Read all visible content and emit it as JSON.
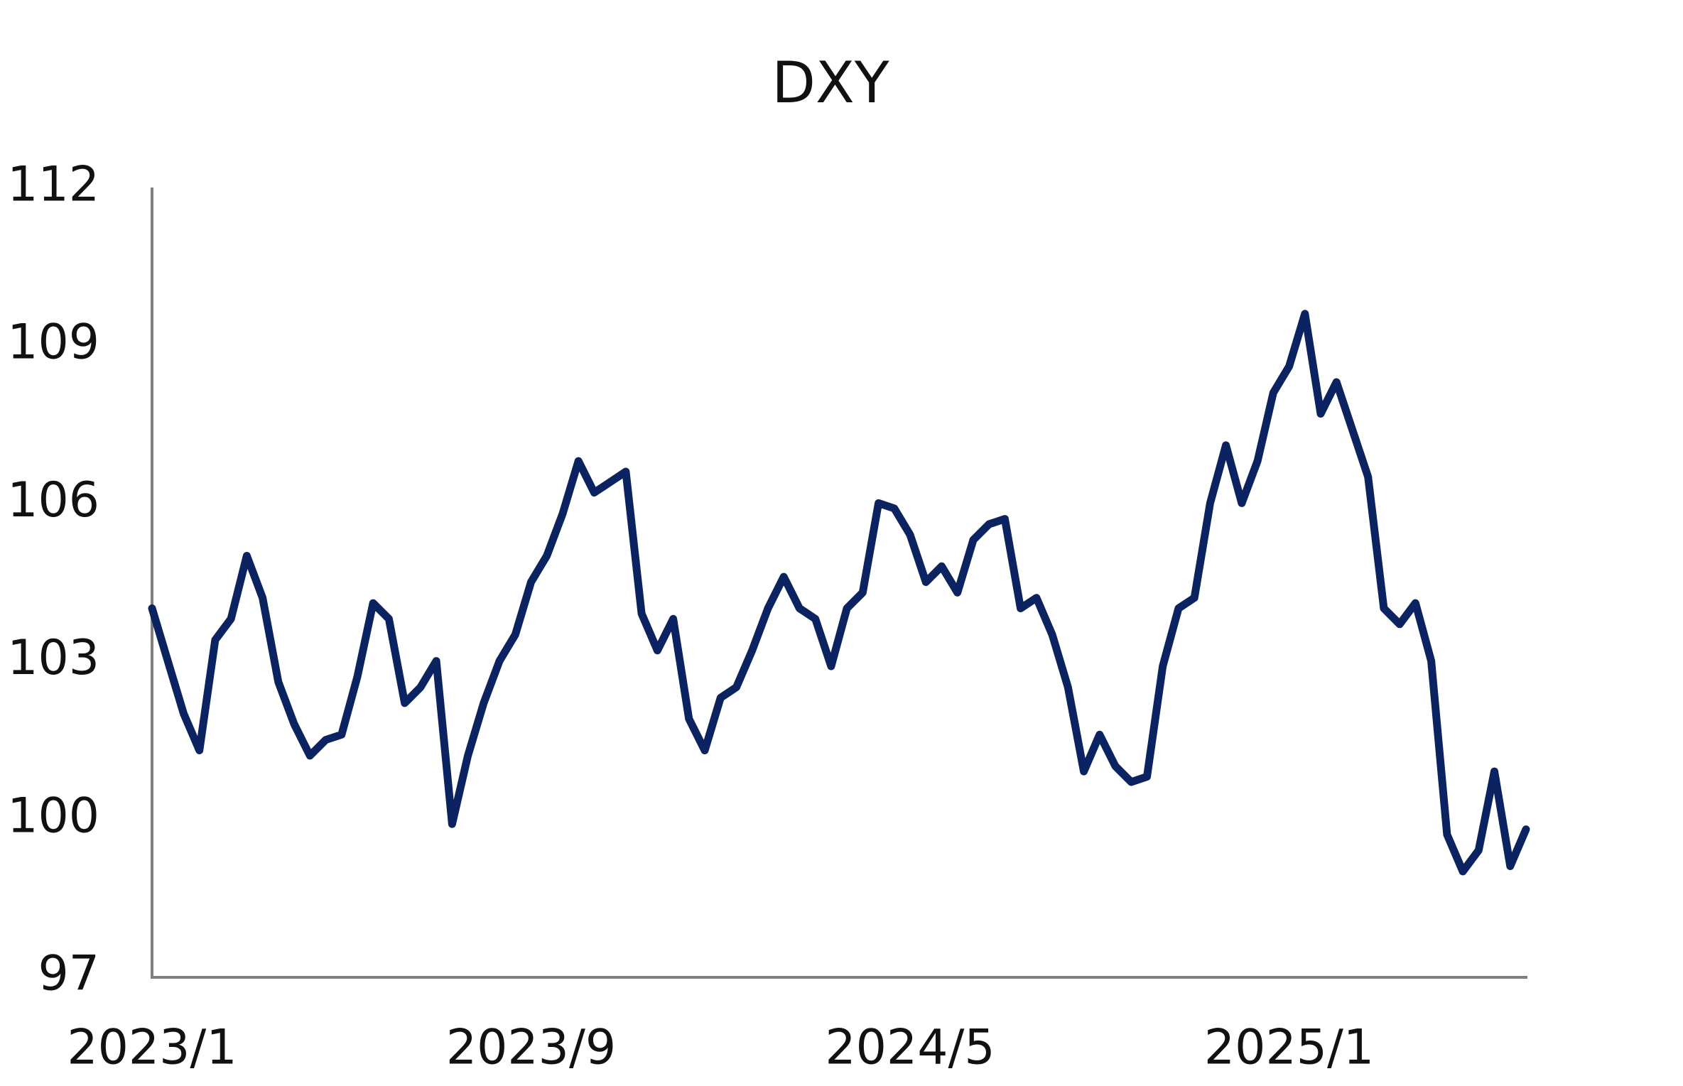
{
  "chart_data": {
    "type": "line",
    "title": "DXY",
    "categories": [
      "2023/1",
      null,
      null,
      null,
      null,
      null,
      null,
      null,
      null,
      null,
      null,
      null,
      null,
      null,
      null,
      null,
      null,
      null,
      null,
      null,
      null,
      null,
      null,
      null,
      "2023/9",
      null,
      null,
      null,
      null,
      null,
      null,
      null,
      null,
      null,
      null,
      null,
      null,
      null,
      null,
      null,
      null,
      null,
      null,
      null,
      null,
      null,
      null,
      null,
      "2024/5",
      null,
      null,
      null,
      null,
      null,
      null,
      null,
      null,
      null,
      null,
      null,
      null,
      null,
      null,
      null,
      null,
      null,
      null,
      null,
      null,
      null,
      null,
      null,
      "2025/1",
      null,
      null,
      null,
      null,
      null,
      null,
      null,
      null,
      null,
      null,
      null,
      null,
      null,
      null,
      null
    ],
    "values": [
      104.0,
      103.0,
      102.0,
      101.3,
      103.4,
      103.8,
      105.0,
      104.2,
      102.6,
      101.8,
      101.2,
      101.5,
      101.6,
      102.7,
      104.1,
      103.8,
      102.2,
      102.5,
      103.0,
      99.9,
      101.2,
      102.2,
      103.0,
      103.5,
      104.5,
      105.0,
      105.8,
      106.8,
      106.2,
      106.4,
      106.6,
      103.9,
      103.2,
      103.8,
      101.9,
      101.3,
      102.3,
      102.5,
      103.2,
      104.0,
      104.6,
      104.0,
      103.8,
      102.9,
      104.0,
      104.3,
      106.0,
      105.9,
      105.4,
      104.5,
      104.8,
      104.3,
      105.3,
      105.6,
      105.7,
      104.0,
      104.2,
      103.5,
      102.5,
      100.9,
      101.6,
      101.0,
      100.7,
      100.8,
      102.9,
      104.0,
      104.2,
      106.0,
      107.1,
      106.0,
      106.8,
      108.1,
      108.6,
      109.6,
      107.7,
      108.3,
      107.4,
      106.5,
      104.0,
      103.7,
      104.1,
      103.0,
      99.7,
      99.0,
      99.4,
      100.9,
      99.1,
      99.8
    ],
    "color": "#0b2361",
    "ylim": [
      97,
      112
    ],
    "yticks": [
      97,
      100,
      103,
      106,
      109,
      112
    ],
    "grid": false
  }
}
